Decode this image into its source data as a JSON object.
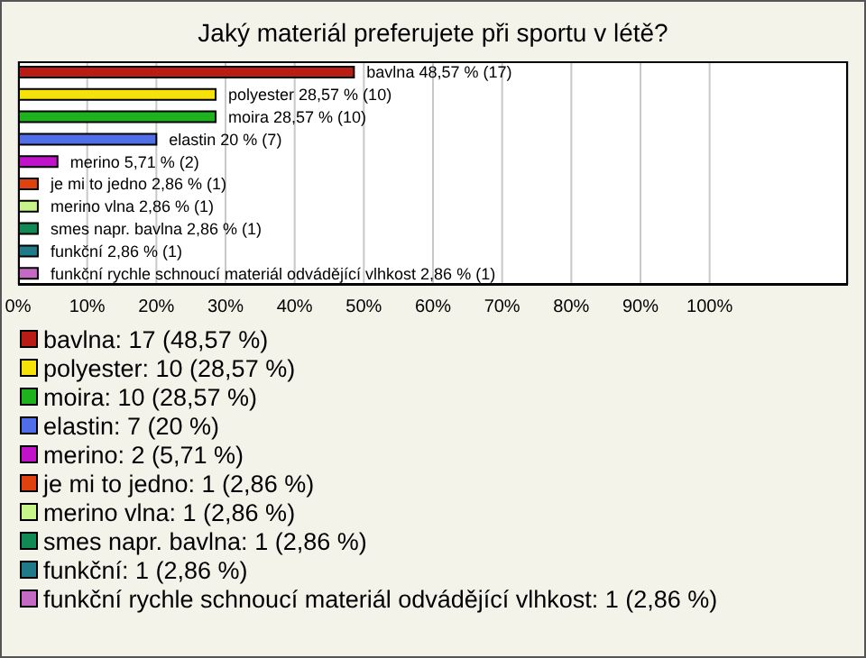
{
  "chart_data": {
    "type": "bar",
    "orientation": "horizontal",
    "title": "Jaký materiál preferujete při sportu v létě?",
    "categories": [
      "bavlna",
      "polyester",
      "moira",
      "elastin",
      "merino",
      "je mi to jedno",
      "merino vlna",
      "smes napr. bavlna",
      "funkční",
      "funkční rychle schnoucí materiál odvádějící vlhkost"
    ],
    "values": [
      48.57,
      28.57,
      28.57,
      20,
      5.71,
      2.86,
      2.86,
      2.86,
      2.86,
      2.86
    ],
    "value_labels": [
      "48,57 % (17)",
      "28,57 % (10)",
      "28,57 % (10)",
      "20 % (7)",
      "5,71 % (2)",
      "2,86 % (1)",
      "2,86 % (1)",
      "2,86 % (1)",
      "2,86 % (1)",
      "2,86 % (1)"
    ],
    "colors": [
      "#b81c14",
      "#f5e20a",
      "#1fb21f",
      "#4f6ee8",
      "#c012c9",
      "#e0420f",
      "#c8f58a",
      "#128a55",
      "#1f7a8a",
      "#c46ac4"
    ],
    "xlim": [
      0,
      120
    ],
    "xticks": [
      {
        "value": 0,
        "label": "0%"
      },
      {
        "value": 10,
        "label": "10%"
      },
      {
        "value": 20,
        "label": "20%"
      },
      {
        "value": 30,
        "label": "30%"
      },
      {
        "value": 40,
        "label": "40%"
      },
      {
        "value": 50,
        "label": "50%"
      },
      {
        "value": 60,
        "label": "60%"
      },
      {
        "value": 70,
        "label": "70%"
      },
      {
        "value": 80,
        "label": "80%"
      },
      {
        "value": 90,
        "label": "90%"
      },
      {
        "value": 100,
        "label": "100%"
      }
    ],
    "grid": "x",
    "tick_labels": "x",
    "annotations": [
      "bavlna: 17 (48,57 %)",
      "polyester: 10 (28,57 %)",
      "moira: 10 (28,57 %)",
      "elastin: 7 (20 %)",
      "merino: 2 (5,71 %)",
      "je mi to jedno: 1 (2,86 %)",
      "merino vlna: 1 (2,86 %)",
      "smes napr. bavlna: 1 (2,86 %)",
      "funkční: 1 (2,86 %)",
      "funkční rychle schnoucí materiál odvádějící vlhkost: 1 (2,86 %)"
    ]
  }
}
